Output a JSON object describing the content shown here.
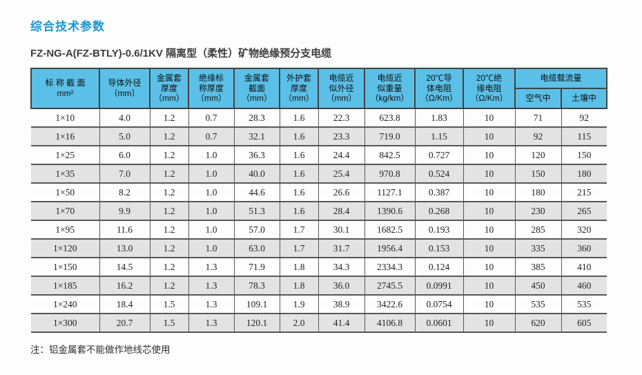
{
  "page": {
    "title": "综合技术参数",
    "subtitle": "FZ-NG-A(FZ-BTLY)-0.6/1KV 隔离型（柔性）矿物绝缘预分支电缆",
    "note": "注：铝金属套不能做作地线芯使用"
  },
  "colors": {
    "title_blue": "#1b96d6",
    "header_bg": "#5bc0e8",
    "alt_row_bg": "#e3e3e3",
    "grid_dark": "#424242",
    "grid_mid": "#565656"
  },
  "table": {
    "columns": [
      {
        "id": "nominal-section",
        "lines": [
          "标 称 截 面",
          "mm²"
        ]
      },
      {
        "id": "conductor-od",
        "lines": [
          "导体外径",
          "（mm）"
        ]
      },
      {
        "id": "metal-sheath-thickness",
        "lines": [
          "金属套",
          "厚度",
          "（mm）"
        ]
      },
      {
        "id": "insulation-thickness",
        "lines": [
          "绝缘标",
          "称厚度",
          "（mm）"
        ]
      },
      {
        "id": "metal-sheath-section",
        "lines": [
          "金属套",
          "截面",
          "（mm）"
        ]
      },
      {
        "id": "outer-sheath-thickness",
        "lines": [
          "外护套",
          "厚度",
          "（mm）"
        ]
      },
      {
        "id": "cable-approx-od",
        "lines": [
          "电缆近",
          "似外径",
          "（mm）"
        ]
      },
      {
        "id": "cable-approx-weight",
        "lines": [
          "电缆近",
          "似重量",
          "（kg/km）"
        ]
      },
      {
        "id": "conductor-resistance-20c",
        "lines": [
          "20℃导",
          "体电阻",
          "（Ω/Km）"
        ]
      },
      {
        "id": "insulation-resistance-20c",
        "lines": [
          "20℃绝",
          "缘电阻",
          "（Ω/Km）"
        ]
      }
    ],
    "ampacity_group": {
      "label": "电缆载流量",
      "sub_columns": [
        "空气中",
        "土壤中"
      ]
    },
    "rows": [
      [
        "1×10",
        "4.0",
        "1.2",
        "0.7",
        "28.3",
        "1.6",
        "22.3",
        "623.8",
        "1.83",
        "10",
        "71",
        "92"
      ],
      [
        "1×16",
        "5.0",
        "1.2",
        "0.7",
        "32.1",
        "1.6",
        "23.3",
        "719.0",
        "1.15",
        "10",
        "92",
        "115"
      ],
      [
        "1×25",
        "6.0",
        "1.2",
        "1.0",
        "36.3",
        "1.6",
        "24.4",
        "842.5",
        "0.727",
        "10",
        "120",
        "150"
      ],
      [
        "1×35",
        "7.0",
        "1.2",
        "1.0",
        "40.0",
        "1.6",
        "25.4",
        "970.8",
        "0.524",
        "10",
        "150",
        "180"
      ],
      [
        "1×50",
        "8.2",
        "1.2",
        "1.0",
        "44.6",
        "1.6",
        "26.6",
        "1127.1",
        "0.387",
        "10",
        "180",
        "215"
      ],
      [
        "1×70",
        "9.9",
        "1.2",
        "1.0",
        "51.3",
        "1.6",
        "28.4",
        "1390.6",
        "0.268",
        "10",
        "230",
        "265"
      ],
      [
        "1×95",
        "11.6",
        "1.2",
        "1.0",
        "57.0",
        "1.7",
        "30.1",
        "1682.5",
        "0.193",
        "10",
        "285",
        "320"
      ],
      [
        "1×120",
        "13.0",
        "1.2",
        "1.0",
        "63.0",
        "1.7",
        "31.7",
        "1956.4",
        "0.153",
        "10",
        "335",
        "360"
      ],
      [
        "1×150",
        "14.5",
        "1.2",
        "1.3",
        "71.9",
        "1.8",
        "34.3",
        "2334.3",
        "0.124",
        "10",
        "385",
        "410"
      ],
      [
        "1×185",
        "16.2",
        "1.2",
        "1.3",
        "78.3",
        "1.8",
        "36.0",
        "2745.5",
        "0.0991",
        "10",
        "450",
        "460"
      ],
      [
        "1×240",
        "18.4",
        "1.5",
        "1.3",
        "109.1",
        "1.9",
        "38.9",
        "3422.6",
        "0.0754",
        "10",
        "535",
        "535"
      ],
      [
        "1×300",
        "20.7",
        "1.5",
        "1.3",
        "120.1",
        "2.0",
        "41.4",
        "4106.8",
        "0.0601",
        "10",
        "620",
        "605"
      ]
    ]
  }
}
